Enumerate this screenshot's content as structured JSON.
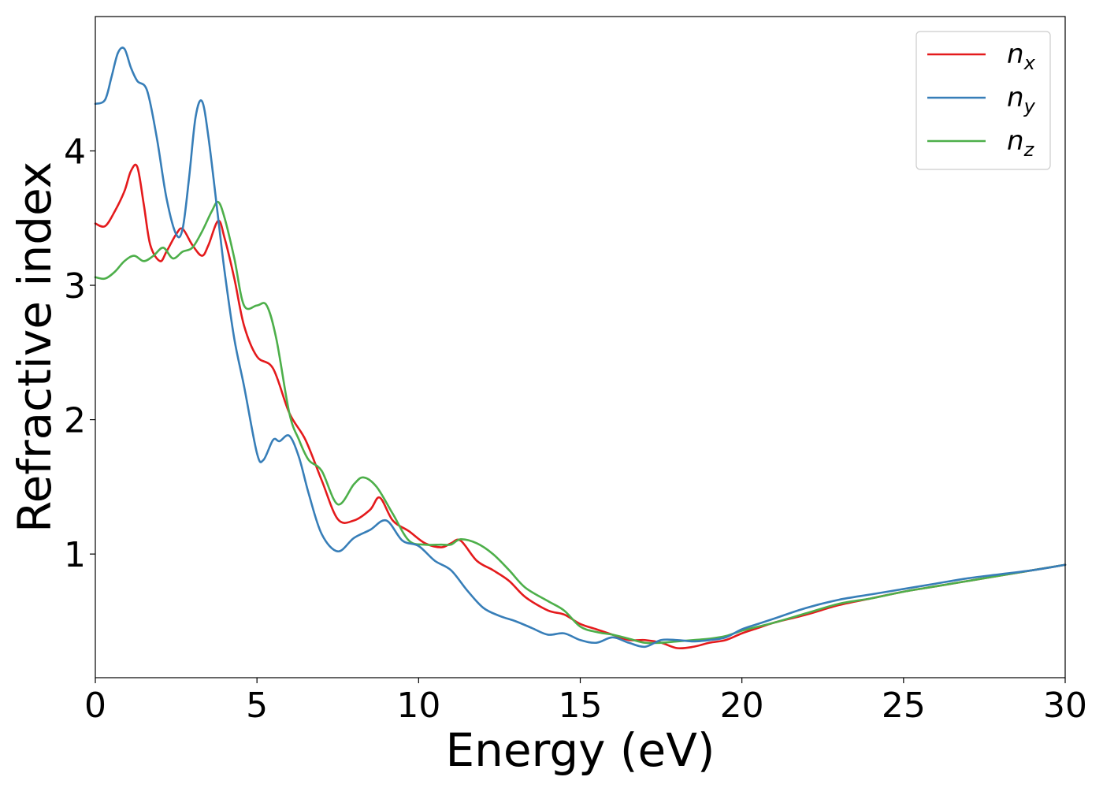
{
  "chart_data": {
    "type": "line",
    "title": "",
    "xlabel": "Energy (eV)",
    "ylabel": "Refractive index",
    "xlim": [
      0,
      30
    ],
    "ylim": [
      0.08,
      5.0
    ],
    "xticks": [
      0,
      5,
      10,
      15,
      20,
      25,
      30
    ],
    "yticks": [
      1,
      2,
      3,
      4
    ],
    "grid": false,
    "legend_position": "top-right",
    "series": [
      {
        "name": "n_x",
        "symbol": "n",
        "subscript": "x",
        "color": "#e41a1c",
        "x": [
          0,
          0.3,
          0.6,
          0.9,
          1.1,
          1.3,
          1.5,
          1.7,
          2.0,
          2.2,
          2.5,
          2.7,
          3.0,
          3.3,
          3.5,
          3.8,
          4.0,
          4.3,
          4.6,
          5.0,
          5.5,
          6.0,
          6.5,
          7.0,
          7.5,
          8.0,
          8.5,
          8.8,
          9.2,
          9.7,
          10.2,
          10.7,
          11.0,
          11.3,
          11.8,
          12.3,
          12.8,
          13.3,
          14.0,
          14.5,
          15.0,
          15.5,
          16.0,
          16.5,
          17.0,
          17.5,
          18.0,
          18.5,
          19.0,
          19.5,
          20.0,
          20.5,
          21.0,
          22.0,
          23.0,
          24.0,
          25.0,
          26.0,
          27.0,
          28.0,
          29.0,
          30.0
        ],
        "y": [
          3.46,
          3.44,
          3.55,
          3.7,
          3.85,
          3.88,
          3.6,
          3.3,
          3.18,
          3.25,
          3.38,
          3.42,
          3.3,
          3.22,
          3.3,
          3.48,
          3.35,
          3.05,
          2.7,
          2.47,
          2.38,
          2.05,
          1.85,
          1.55,
          1.26,
          1.25,
          1.33,
          1.42,
          1.25,
          1.17,
          1.08,
          1.05,
          1.08,
          1.1,
          0.95,
          0.88,
          0.8,
          0.68,
          0.58,
          0.55,
          0.48,
          0.44,
          0.4,
          0.36,
          0.36,
          0.34,
          0.3,
          0.31,
          0.34,
          0.36,
          0.41,
          0.45,
          0.49,
          0.55,
          0.62,
          0.67,
          0.72,
          0.76,
          0.8,
          0.84,
          0.88,
          0.92
        ]
      },
      {
        "name": "n_y",
        "symbol": "n",
        "subscript": "y",
        "color": "#377eb8",
        "x": [
          0,
          0.3,
          0.5,
          0.7,
          0.9,
          1.1,
          1.3,
          1.6,
          1.9,
          2.2,
          2.5,
          2.7,
          2.9,
          3.1,
          3.3,
          3.5,
          3.8,
          4.0,
          4.3,
          4.6,
          5.0,
          5.2,
          5.5,
          5.7,
          6.0,
          6.3,
          6.6,
          7.0,
          7.5,
          8.0,
          8.5,
          9.0,
          9.5,
          10.0,
          10.5,
          11.0,
          11.5,
          12.0,
          12.5,
          13.0,
          13.5,
          14.0,
          14.5,
          15.0,
          15.5,
          16.0,
          16.5,
          17.0,
          17.5,
          18.0,
          18.5,
          19.0,
          19.5,
          20.0,
          20.5,
          21.0,
          22.0,
          23.0,
          24.0,
          25.0,
          26.0,
          27.0,
          28.0,
          29.0,
          30.0
        ],
        "y": [
          4.35,
          4.38,
          4.55,
          4.73,
          4.76,
          4.62,
          4.52,
          4.45,
          4.1,
          3.65,
          3.38,
          3.42,
          3.8,
          4.25,
          4.37,
          4.1,
          3.5,
          3.1,
          2.6,
          2.25,
          1.75,
          1.7,
          1.85,
          1.84,
          1.88,
          1.72,
          1.45,
          1.15,
          1.02,
          1.12,
          1.18,
          1.25,
          1.1,
          1.06,
          0.95,
          0.88,
          0.73,
          0.6,
          0.54,
          0.5,
          0.45,
          0.4,
          0.41,
          0.36,
          0.34,
          0.38,
          0.34,
          0.31,
          0.36,
          0.36,
          0.35,
          0.36,
          0.38,
          0.44,
          0.48,
          0.52,
          0.6,
          0.66,
          0.7,
          0.74,
          0.78,
          0.82,
          0.85,
          0.88,
          0.92
        ]
      },
      {
        "name": "n_z",
        "symbol": "n",
        "subscript": "z",
        "color": "#4daf4a",
        "x": [
          0,
          0.3,
          0.6,
          0.9,
          1.2,
          1.5,
          1.8,
          2.1,
          2.4,
          2.7,
          3.0,
          3.3,
          3.6,
          3.8,
          4.0,
          4.3,
          4.6,
          5.0,
          5.3,
          5.6,
          6.0,
          6.3,
          6.6,
          7.0,
          7.5,
          8.0,
          8.3,
          8.7,
          9.2,
          9.7,
          10.2,
          10.7,
          11.0,
          11.3,
          11.8,
          12.3,
          12.8,
          13.3,
          14.0,
          14.5,
          15.0,
          15.5,
          16.0,
          16.5,
          17.0,
          17.5,
          18.0,
          18.5,
          19.0,
          19.5,
          20.0,
          20.5,
          21.0,
          22.0,
          23.0,
          24.0,
          25.0,
          26.0,
          27.0,
          28.0,
          29.0,
          30.0
        ],
        "y": [
          3.06,
          3.05,
          3.1,
          3.18,
          3.22,
          3.18,
          3.22,
          3.28,
          3.2,
          3.25,
          3.28,
          3.4,
          3.55,
          3.62,
          3.5,
          3.2,
          2.85,
          2.85,
          2.85,
          2.6,
          2.05,
          1.85,
          1.7,
          1.62,
          1.37,
          1.52,
          1.57,
          1.5,
          1.3,
          1.1,
          1.07,
          1.07,
          1.07,
          1.11,
          1.08,
          1.0,
          0.88,
          0.75,
          0.65,
          0.58,
          0.46,
          0.42,
          0.4,
          0.37,
          0.34,
          0.34,
          0.35,
          0.36,
          0.37,
          0.39,
          0.43,
          0.46,
          0.49,
          0.56,
          0.63,
          0.67,
          0.72,
          0.76,
          0.8,
          0.84,
          0.88,
          0.92
        ]
      }
    ]
  }
}
